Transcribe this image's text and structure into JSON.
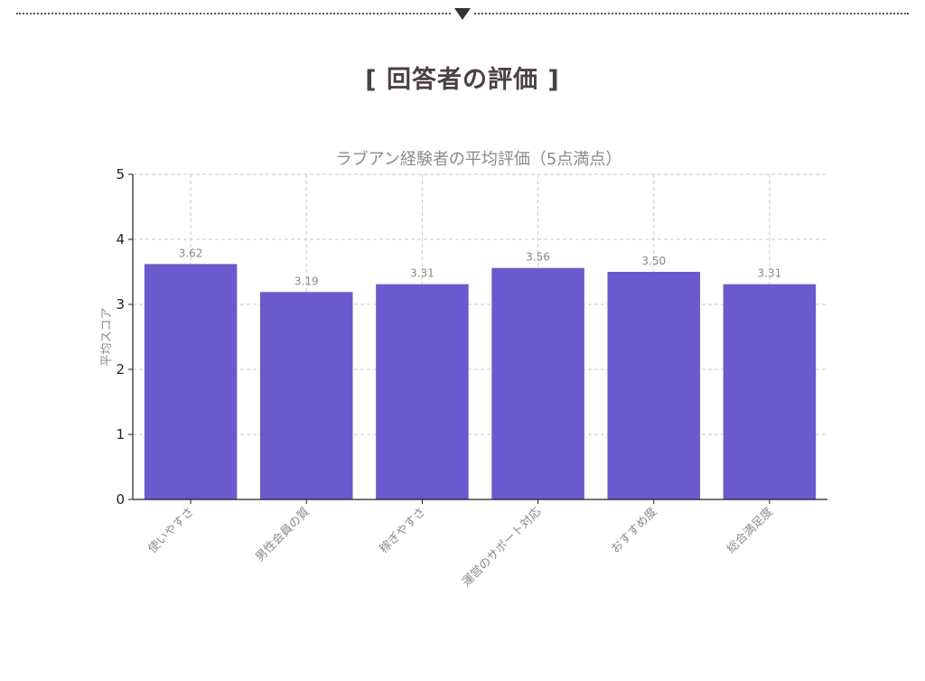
{
  "page": {
    "heading": "[ 回答者の評価 ]",
    "divider_icon": "triangle-down-icon"
  },
  "chart_data": {
    "type": "bar",
    "title": "ラブアン経験者の平均評価（5点満点）",
    "xlabel": "",
    "ylabel": "平均スコア",
    "categories": [
      "使いやすさ",
      "男性会員の質",
      "稼ぎやすさ",
      "運営のサポート対応",
      "おすすめ度",
      "総合満足度"
    ],
    "values": [
      3.62,
      3.19,
      3.31,
      3.56,
      3.5,
      3.31
    ],
    "value_labels": [
      "3.62",
      "3.19",
      "3.31",
      "3.56",
      "3.50",
      "3.31"
    ],
    "ylim": [
      0,
      5
    ],
    "yticks": [
      0,
      1,
      2,
      3,
      4,
      5
    ],
    "grid": true,
    "bar_color": "#6a5acd"
  }
}
